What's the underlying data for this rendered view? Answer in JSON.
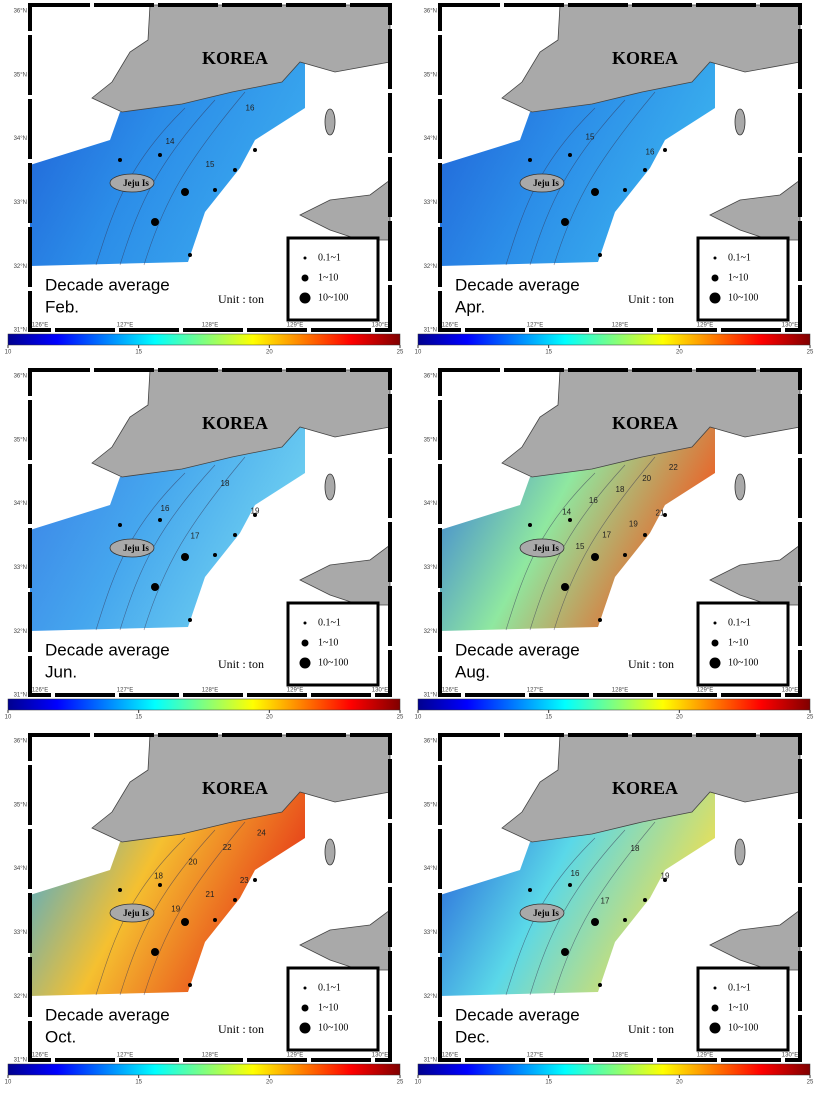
{
  "country": "KOREA",
  "island": "Jeju Is",
  "caption": "Decade average",
  "unit": "Unit : ton",
  "legend": [
    "0.1~1",
    "1~10",
    "10~100"
  ],
  "lat_labels": [
    "36°N",
    "35°N",
    "34°N",
    "33°N",
    "32°N",
    "31°N"
  ],
  "lon_labels": [
    "126°E",
    "127°E",
    "128°E",
    "129°E",
    "130°E"
  ],
  "colorbar": {
    "lim": [
      10,
      25
    ],
    "ticks": [
      10,
      15,
      20,
      25
    ]
  },
  "panels": [
    {
      "month": "Feb.",
      "colors": [
        "#1f5fd6",
        "#2b8ce8",
        "#3aa8ee"
      ],
      "contour_labels": [
        "14",
        "15",
        "16"
      ]
    },
    {
      "month": "Apr.",
      "colors": [
        "#1f5fd6",
        "#2b8ce8",
        "#3ab0ee"
      ],
      "contour_labels": [
        "15",
        "16"
      ]
    },
    {
      "month": "Jun.",
      "colors": [
        "#3a7fe6",
        "#45a6ee",
        "#6fd0f0"
      ],
      "contour_labels": [
        "16",
        "17",
        "18",
        "19"
      ]
    },
    {
      "month": "Aug.",
      "colors": [
        "#2e6fe0",
        "#8fe8a0",
        "#f05a20"
      ],
      "contour_labels": [
        "14",
        "15",
        "16",
        "17",
        "18",
        "19",
        "20",
        "21",
        "22"
      ]
    },
    {
      "month": "Oct.",
      "colors": [
        "#2aa8f0",
        "#f5c030",
        "#e63a18"
      ],
      "contour_labels": [
        "18",
        "19",
        "20",
        "21",
        "22",
        "23",
        "24"
      ]
    },
    {
      "month": "Dec.",
      "colors": [
        "#2050d8",
        "#5ad8e8",
        "#f0e050"
      ],
      "contour_labels": [
        "16",
        "17",
        "18",
        "19"
      ]
    }
  ]
}
